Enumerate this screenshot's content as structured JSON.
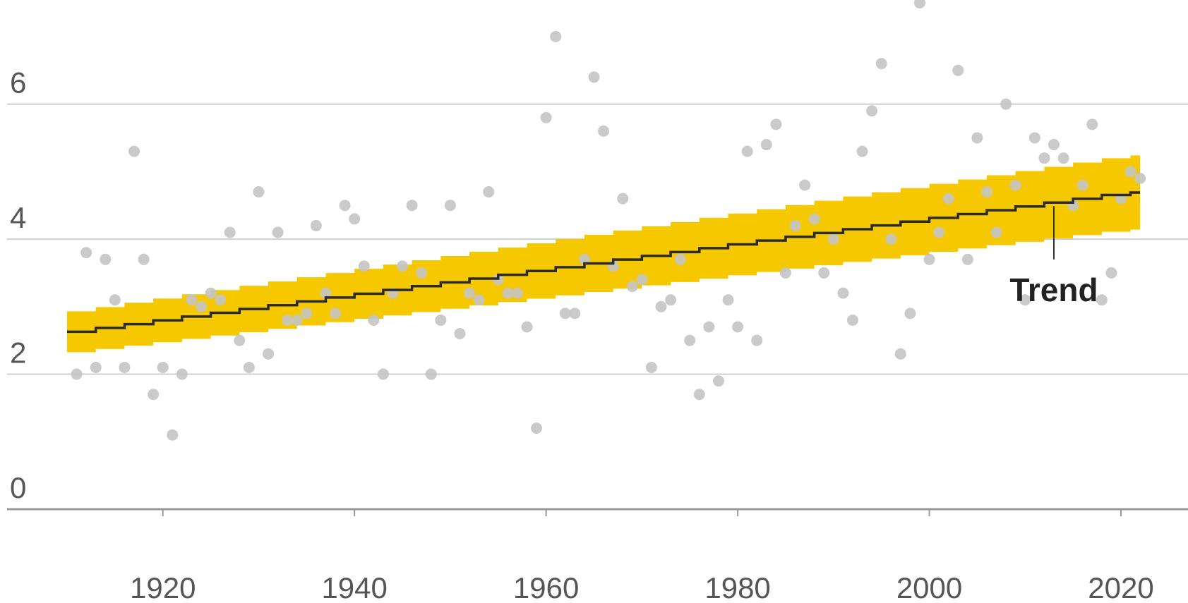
{
  "chart_data": {
    "type": "scatter",
    "title": "",
    "xlabel": "",
    "ylabel": "",
    "xlim": [
      1903,
      2027
    ],
    "ylim": [
      0,
      7.5
    ],
    "x_ticks": [
      1920,
      1940,
      1960,
      1980,
      2000,
      2020
    ],
    "y_ticks": [
      0,
      2,
      4,
      6
    ],
    "grid": true,
    "colors": {
      "points": "#c4c4c4",
      "band": "#f5c800",
      "trend": "#2b2b2b",
      "grid": "#cfcfcf",
      "axis": "#999999"
    },
    "annotation": {
      "text": "Trend",
      "x": 2013,
      "y": 3.1
    },
    "series": [
      {
        "type": "scatter",
        "points": [
          [
            1911,
            2.0
          ],
          [
            1912,
            3.8
          ],
          [
            1913,
            2.1
          ],
          [
            1914,
            3.7
          ],
          [
            1915,
            3.1
          ],
          [
            1916,
            2.1
          ],
          [
            1917,
            5.3
          ],
          [
            1918,
            3.7
          ],
          [
            1919,
            1.7
          ],
          [
            1920,
            2.1
          ],
          [
            1921,
            1.1
          ],
          [
            1922,
            2.0
          ],
          [
            1923,
            3.1
          ],
          [
            1924,
            3.0
          ],
          [
            1925,
            3.2
          ],
          [
            1926,
            3.1
          ],
          [
            1927,
            4.1
          ],
          [
            1928,
            2.5
          ],
          [
            1929,
            2.1
          ],
          [
            1930,
            4.7
          ],
          [
            1931,
            2.3
          ],
          [
            1932,
            4.1
          ],
          [
            1933,
            2.8
          ],
          [
            1934,
            2.8
          ],
          [
            1935,
            2.9
          ],
          [
            1936,
            4.2
          ],
          [
            1937,
            3.2
          ],
          [
            1938,
            2.9
          ],
          [
            1939,
            4.5
          ],
          [
            1940,
            4.3
          ],
          [
            1941,
            3.6
          ],
          [
            1942,
            2.8
          ],
          [
            1943,
            2.0
          ],
          [
            1944,
            3.2
          ],
          [
            1945,
            3.6
          ],
          [
            1946,
            4.5
          ],
          [
            1947,
            3.5
          ],
          [
            1948,
            2.0
          ],
          [
            1949,
            2.8
          ],
          [
            1950,
            4.5
          ],
          [
            1951,
            2.6
          ],
          [
            1952,
            3.2
          ],
          [
            1953,
            3.1
          ],
          [
            1954,
            4.7
          ],
          [
            1955,
            3.4
          ],
          [
            1956,
            3.2
          ],
          [
            1957,
            3.2
          ],
          [
            1958,
            2.7
          ],
          [
            1959,
            1.2
          ],
          [
            1960,
            5.8
          ],
          [
            1961,
            7.0
          ],
          [
            1962,
            2.9
          ],
          [
            1963,
            2.9
          ],
          [
            1964,
            3.7
          ],
          [
            1965,
            6.4
          ],
          [
            1966,
            5.6
          ],
          [
            1967,
            3.6
          ],
          [
            1968,
            4.6
          ],
          [
            1969,
            3.3
          ],
          [
            1970,
            3.4
          ],
          [
            1971,
            2.1
          ],
          [
            1972,
            3.0
          ],
          [
            1973,
            3.1
          ],
          [
            1974,
            3.7
          ],
          [
            1975,
            2.5
          ],
          [
            1976,
            1.7
          ],
          [
            1977,
            2.7
          ],
          [
            1978,
            1.9
          ],
          [
            1979,
            3.1
          ],
          [
            1980,
            2.7
          ],
          [
            1981,
            5.3
          ],
          [
            1982,
            2.5
          ],
          [
            1983,
            5.4
          ],
          [
            1984,
            5.7
          ],
          [
            1985,
            3.5
          ],
          [
            1986,
            4.2
          ],
          [
            1987,
            4.8
          ],
          [
            1988,
            4.3
          ],
          [
            1989,
            3.5
          ],
          [
            1990,
            4.0
          ],
          [
            1991,
            3.2
          ],
          [
            1992,
            2.8
          ],
          [
            1993,
            5.3
          ],
          [
            1994,
            5.9
          ],
          [
            1995,
            6.6
          ],
          [
            1996,
            4.0
          ],
          [
            1997,
            2.3
          ],
          [
            1998,
            2.9
          ],
          [
            1999,
            7.5
          ],
          [
            2000,
            3.7
          ],
          [
            2001,
            4.1
          ],
          [
            2002,
            4.6
          ],
          [
            2003,
            6.5
          ],
          [
            2004,
            3.7
          ],
          [
            2005,
            5.5
          ],
          [
            2006,
            4.7
          ],
          [
            2007,
            4.1
          ],
          [
            2008,
            6.0
          ],
          [
            2009,
            4.8
          ],
          [
            2010,
            3.1
          ],
          [
            2011,
            5.5
          ],
          [
            2012,
            5.2
          ],
          [
            2013,
            5.4
          ],
          [
            2014,
            5.2
          ],
          [
            2015,
            4.5
          ],
          [
            2016,
            4.8
          ],
          [
            2017,
            5.7
          ],
          [
            2018,
            3.1
          ],
          [
            2019,
            3.5
          ],
          [
            2020,
            4.6
          ],
          [
            2021,
            5.0
          ],
          [
            2022,
            4.9
          ]
        ]
      },
      {
        "name": "Trend",
        "type": "line",
        "x": [
          1910,
          2022
        ],
        "y": [
          2.6,
          4.7
        ],
        "band_halfwidth_start": 0.3,
        "band_halfwidth_end": 0.55,
        "step_years": 3
      }
    ]
  }
}
